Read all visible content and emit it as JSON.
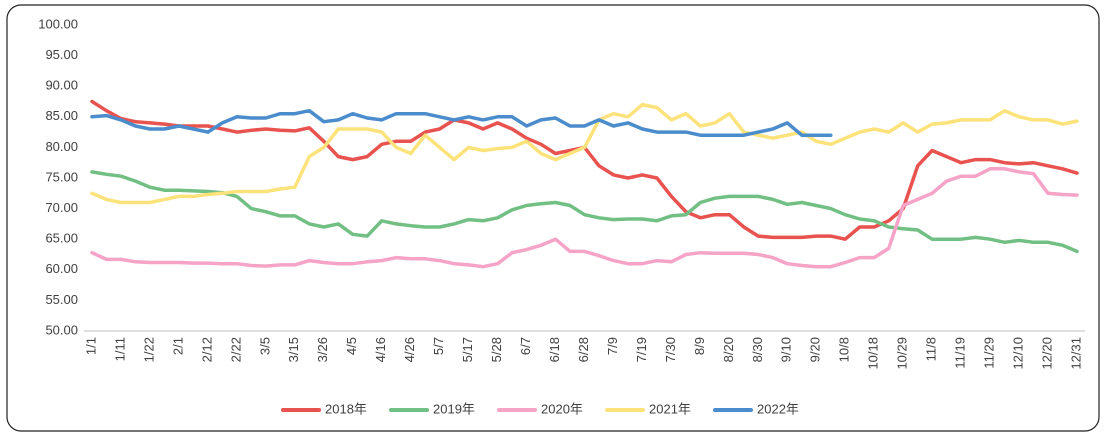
{
  "chart_data": {
    "type": "line",
    "categories": [
      "1/1",
      null,
      "1/11",
      null,
      "1/22",
      null,
      "2/1",
      null,
      "2/12",
      null,
      "2/22",
      null,
      "3/5",
      null,
      "3/15",
      null,
      "3/26",
      null,
      "4/5",
      null,
      "4/16",
      null,
      "4/26",
      null,
      "5/7",
      null,
      "5/17",
      null,
      "5/28",
      null,
      "6/7",
      null,
      "6/18",
      null,
      "6/28",
      null,
      "7/9",
      null,
      "7/19",
      null,
      "7/30",
      null,
      "8/9",
      null,
      "8/20",
      null,
      "8/30",
      null,
      "9/10",
      null,
      "9/20",
      null,
      "10/8",
      null,
      "10/18",
      null,
      "10/29",
      null,
      "11/8",
      null,
      "11/19",
      null,
      "11/29",
      null,
      "12/10",
      null,
      "12/20",
      null,
      "12/31"
    ],
    "ylim": [
      50,
      100
    ],
    "yticks": [
      {
        "value": 50,
        "label": "50.00"
      },
      {
        "value": 55,
        "label": "55.00"
      },
      {
        "value": 60,
        "label": "60.00"
      },
      {
        "value": 65,
        "label": "65.00"
      },
      {
        "value": 70,
        "label": "70.00"
      },
      {
        "value": 75,
        "label": "75.00"
      },
      {
        "value": 80,
        "label": "80.00"
      },
      {
        "value": 85,
        "label": "85.00"
      },
      {
        "value": 90,
        "label": "90.00"
      },
      {
        "value": 95,
        "label": "95.00"
      },
      {
        "value": 100,
        "label": "100.00"
      }
    ],
    "grid": false,
    "legend": "bottom",
    "series": [
      {
        "name": "2018年",
        "color": "#e8524f",
        "values": [
          87.5,
          86,
          84.7,
          84.2,
          84,
          83.8,
          83.5,
          83.5,
          83.5,
          83,
          82.5,
          82.8,
          83,
          82.8,
          82.7,
          83.2,
          81,
          78.5,
          78,
          78.5,
          80.5,
          81,
          81,
          82.5,
          83,
          84.5,
          84,
          83,
          84,
          83,
          81.5,
          80.5,
          79,
          79.5,
          80,
          77,
          75.5,
          75,
          75.5,
          75,
          72,
          69.5,
          68.5,
          69,
          69,
          67,
          65.5,
          65.3,
          65.3,
          65.3,
          65.5,
          65.5,
          65,
          67,
          67,
          68,
          70,
          77,
          79.5,
          78.5,
          77.5,
          78,
          78,
          77.5,
          77.3,
          77.5,
          77,
          76.5,
          75.8
        ]
      },
      {
        "name": "2019年",
        "color": "#72bf84",
        "values": [
          76,
          75.6,
          75.3,
          74.5,
          73.5,
          73,
          73,
          72.9,
          72.8,
          72.6,
          72,
          70,
          69.5,
          68.8,
          68.8,
          67.5,
          67,
          67.5,
          65.8,
          65.5,
          68,
          67.5,
          67.2,
          67,
          67,
          67.5,
          68.2,
          68,
          68.5,
          69.8,
          70.5,
          70.8,
          71,
          70.5,
          69,
          68.5,
          68.2,
          68.3,
          68.3,
          68,
          68.8,
          69,
          71,
          71.7,
          72,
          72,
          72,
          71.5,
          70.7,
          71,
          70.5,
          70,
          69,
          68.3,
          68,
          67,
          66.7,
          66.5,
          65,
          65,
          65,
          65.3,
          65,
          64.5,
          64.8,
          64.5,
          64.5,
          64,
          63
        ]
      },
      {
        "name": "2020年",
        "color": "#f5a3c7",
        "values": [
          62.8,
          61.7,
          61.7,
          61.3,
          61.2,
          61.2,
          61.2,
          61.1,
          61.1,
          61,
          61,
          60.7,
          60.6,
          60.8,
          60.8,
          61.5,
          61.2,
          61,
          61,
          61.3,
          61.5,
          62,
          61.8,
          61.8,
          61.5,
          61,
          60.8,
          60.5,
          61,
          62.8,
          63.3,
          64,
          65,
          63,
          63,
          62.3,
          61.5,
          61,
          61,
          61.5,
          61.3,
          62.5,
          62.8,
          62.7,
          62.7,
          62.7,
          62.5,
          62,
          61,
          60.7,
          60.5,
          60.5,
          61.2,
          62,
          62,
          63.5,
          70.5,
          71.5,
          72.5,
          74.5,
          75.3,
          75.3,
          76.5,
          76.5,
          76,
          75.7,
          72.5,
          72.3,
          72.2
        ]
      },
      {
        "name": "2021年",
        "color": "#fbe27a",
        "values": [
          72.5,
          71.5,
          71,
          71,
          71,
          71.5,
          72,
          72,
          72.3,
          72.5,
          72.8,
          72.8,
          72.8,
          73.2,
          73.5,
          78.5,
          80,
          83,
          83,
          83,
          82.5,
          80,
          79,
          82,
          80,
          78,
          80,
          79.5,
          79.8,
          80,
          81,
          79,
          78,
          79,
          80,
          84.5,
          85.5,
          85,
          87,
          86.5,
          84.5,
          85.5,
          83.5,
          84,
          85.5,
          82.5,
          82,
          81.5,
          82,
          82.5,
          81,
          80.5,
          81.5,
          82.5,
          83,
          82.5,
          84,
          82.5,
          83.8,
          84,
          84.5,
          84.5,
          84.5,
          86,
          85,
          84.5,
          84.5,
          83.8,
          84.3
        ]
      },
      {
        "name": "2022年",
        "color": "#4a8ccc",
        "values": [
          85,
          85.2,
          84.5,
          83.5,
          83,
          83,
          83.5,
          83,
          82.5,
          84,
          85,
          84.8,
          84.8,
          85.5,
          85.5,
          86,
          84.2,
          84.5,
          85.5,
          84.8,
          84.5,
          85.5,
          85.5,
          85.5,
          85,
          84.5,
          85,
          84.5,
          85,
          85,
          83.5,
          84.5,
          84.8,
          83.5,
          83.5,
          84.5,
          83.5,
          84,
          83,
          82.5,
          82.5,
          82.5,
          82,
          82,
          82,
          82,
          82.5,
          83,
          84,
          82,
          82,
          82,
          null,
          null,
          null,
          null,
          null,
          null,
          null,
          null,
          null,
          null,
          null,
          null,
          null,
          null,
          null,
          null,
          null
        ]
      }
    ]
  }
}
